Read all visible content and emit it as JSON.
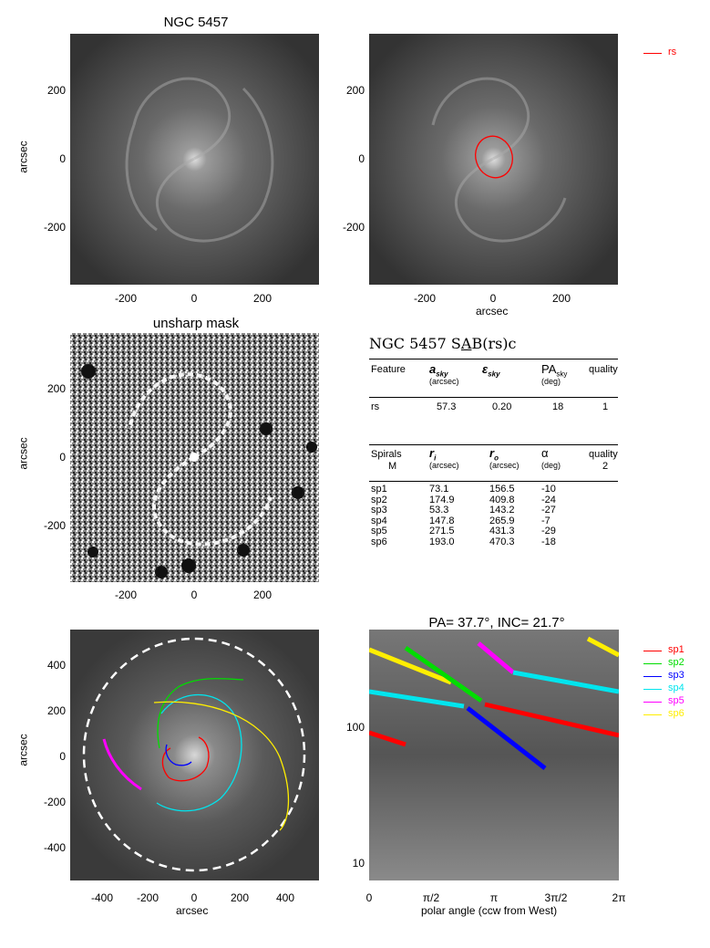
{
  "panel1": {
    "title": "NGC 5457",
    "ylabel": "arcsec",
    "xticks": [
      "-200",
      "0",
      "200"
    ],
    "yticks": [
      "200",
      "0",
      "-200"
    ]
  },
  "panel2": {
    "xlabel": "arcsec",
    "xticks": [
      "-200",
      "0",
      "200"
    ],
    "yticks": [
      "200",
      "0",
      "-200"
    ],
    "legend": "rs",
    "legend_color": "#ff0000"
  },
  "panel3": {
    "title": "unsharp mask",
    "ylabel": "arcsec",
    "xticks": [
      "-200",
      "0",
      "200"
    ],
    "yticks": [
      "200",
      "0",
      "-200"
    ]
  },
  "table": {
    "header": "NGC 5457  SAB(rs)c",
    "header_prefix": "NGC 5457  S",
    "header_underlined": "A",
    "header_suffix": "B(rs)c",
    "cols1": [
      "Feature",
      "a",
      "ε",
      "PA",
      "quality"
    ],
    "cols1_sub": [
      "",
      "sky",
      "sky",
      "sky",
      ""
    ],
    "cols1_units": [
      "",
      "(arcsec)",
      "",
      "(deg)",
      ""
    ],
    "rows1": [
      [
        "rs",
        "57.3",
        "0.20",
        "18",
        "1"
      ]
    ],
    "cols2": [
      "Spirals",
      "r",
      "r",
      "α",
      "quality"
    ],
    "cols2_sub": [
      "",
      "i",
      "o",
      "",
      ""
    ],
    "cols2_units": [
      "M",
      "(arcsec)",
      "(arcsec)",
      "(deg)",
      "2"
    ],
    "rows2": [
      [
        "sp1",
        "73.1",
        "156.5",
        "-10"
      ],
      [
        "sp2",
        "174.9",
        "409.8",
        "-24"
      ],
      [
        "sp3",
        "53.3",
        "143.2",
        "-27"
      ],
      [
        "sp4",
        "147.8",
        "265.9",
        "-7"
      ],
      [
        "sp5",
        "271.5",
        "431.3",
        "-29"
      ],
      [
        "sp6",
        "193.0",
        "470.3",
        "-18"
      ]
    ]
  },
  "panel5": {
    "xlabel": "arcsec",
    "ylabel": "arcsec",
    "xticks": [
      "-400",
      "-200",
      "0",
      "200",
      "400"
    ],
    "yticks": [
      "400",
      "200",
      "0",
      "-200",
      "-400"
    ]
  },
  "panel6": {
    "title": "PA= 37.7°, INC= 21.7°",
    "xlabel": "polar angle (ccw from West)",
    "xticks": [
      "0",
      "π/2",
      "π",
      "3π/2",
      "2π"
    ],
    "yticks": [
      "100",
      "10"
    ]
  },
  "legend": [
    {
      "name": "sp1",
      "color": "#ff0000"
    },
    {
      "name": "sp2",
      "color": "#00dd00"
    },
    {
      "name": "sp3",
      "color": "#0000ff"
    },
    {
      "name": "sp4",
      "color": "#00e5ee"
    },
    {
      "name": "sp5",
      "color": "#ff00ff"
    },
    {
      "name": "sp6",
      "color": "#ffee00"
    }
  ]
}
